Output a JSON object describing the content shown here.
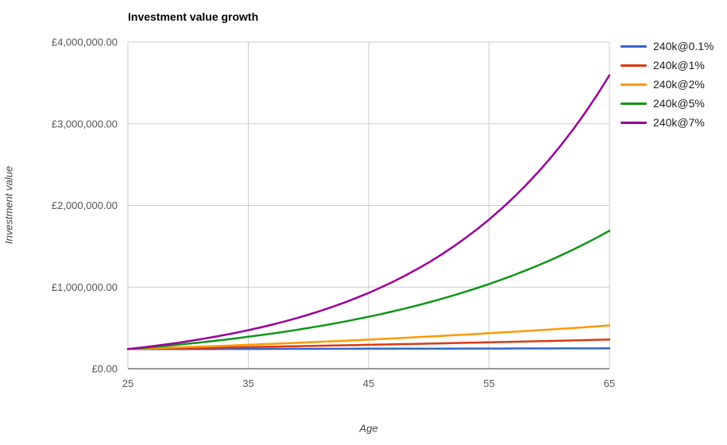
{
  "chart_data": {
    "type": "line",
    "title": "Investment value growth",
    "xlabel": "Age",
    "ylabel": "Investment value",
    "xlim": [
      25,
      65
    ],
    "ylim": [
      0,
      4000000
    ],
    "xticks": [
      25,
      35,
      45,
      55,
      65
    ],
    "yticks": [
      0,
      1000000,
      2000000,
      3000000,
      4000000
    ],
    "ytick_labels": [
      "£0.00",
      "£1,000,000.00",
      "£2,000,000.00",
      "£3,000,000.00",
      "£4,000,000.00"
    ],
    "grid": true,
    "legend_position": "right",
    "x": [
      25,
      26,
      27,
      28,
      29,
      30,
      31,
      32,
      33,
      34,
      35,
      36,
      37,
      38,
      39,
      40,
      41,
      42,
      43,
      44,
      45,
      46,
      47,
      48,
      49,
      50,
      51,
      52,
      53,
      54,
      55,
      56,
      57,
      58,
      59,
      60,
      61,
      62,
      63,
      64,
      65
    ],
    "series": [
      {
        "name": "240k@0.1%",
        "color": "#3366cc",
        "values": [
          240000,
          240240,
          240480,
          240721,
          240961,
          241202,
          241444,
          241685,
          241927,
          242169,
          242411,
          242653,
          242896,
          243139,
          243382,
          243625,
          243869,
          244113,
          244357,
          244601,
          244846,
          245090,
          245336,
          245581,
          245826,
          246072,
          246318,
          246565,
          246811,
          247058,
          247305,
          247553,
          247800,
          248048,
          248296,
          248544,
          248793,
          249042,
          249291,
          249540,
          249790
        ]
      },
      {
        "name": "240k@1%",
        "color": "#dc3912",
        "values": [
          240000,
          242400,
          244824,
          247272,
          249745,
          252242,
          254765,
          257312,
          259886,
          262484,
          265109,
          267760,
          270438,
          273142,
          275874,
          278633,
          281419,
          284233,
          287075,
          289946,
          292846,
          295774,
          298732,
          301719,
          304736,
          307784,
          310862,
          313970,
          317110,
          320281,
          323484,
          326719,
          329986,
          333286,
          336618,
          339985,
          343385,
          346818,
          350287,
          353789,
          357327
        ]
      },
      {
        "name": "240k@2%",
        "color": "#ff9900",
        "values": [
          240000,
          244800,
          249696,
          254690,
          259784,
          264979,
          270279,
          275685,
          281198,
          286822,
          292559,
          298410,
          304378,
          310466,
          316675,
          323008,
          329469,
          336058,
          342779,
          349635,
          356627,
          363760,
          371035,
          378456,
          386025,
          393745,
          401620,
          409653,
          417846,
          426203,
          434727,
          443421,
          452290,
          461336,
          470562,
          479973,
          489573,
          499364,
          509352,
          519539,
          529930
        ]
      },
      {
        "name": "240k@5%",
        "color": "#109618",
        "values": [
          240000,
          252000,
          264600,
          277830,
          291722,
          306308,
          321623,
          337704,
          354589,
          372319,
          390935,
          410481,
          431006,
          452556,
          475184,
          498943,
          523890,
          550084,
          577589,
          606468,
          636791,
          668631,
          702063,
          737166,
          774024,
          812725,
          853361,
          896030,
          940831,
          987873,
          1037266,
          1089129,
          1143586,
          1200765,
          1260804,
          1323844,
          1390036,
          1459538,
          1532515,
          1609140,
          1689597
        ]
      },
      {
        "name": "240k@7%",
        "color": "#990099",
        "values": [
          240000,
          256800,
          274776,
          294010,
          314591,
          336612,
          360175,
          385388,
          412365,
          441230,
          472116,
          505164,
          540526,
          578363,
          618848,
          662168,
          708519,
          758116,
          811184,
          867967,
          928724,
          993735,
          1063296,
          1137727,
          1217368,
          1302584,
          1393765,
          1491328,
          1595721,
          1707422,
          1826941,
          1954827,
          2091665,
          2238082,
          2394747,
          2562580,
          2741746,
          2933668,
          3139025,
          3358757,
          3593870
        ]
      }
    ],
    "style": {
      "grid_color": "#cccccc",
      "axis_line_color": "#333333",
      "tick_text_color": "#555555",
      "axis_title_color": "#444444",
      "title_color": "#000000",
      "legend_text_color": "#222222",
      "line_width": 2.5
    }
  }
}
